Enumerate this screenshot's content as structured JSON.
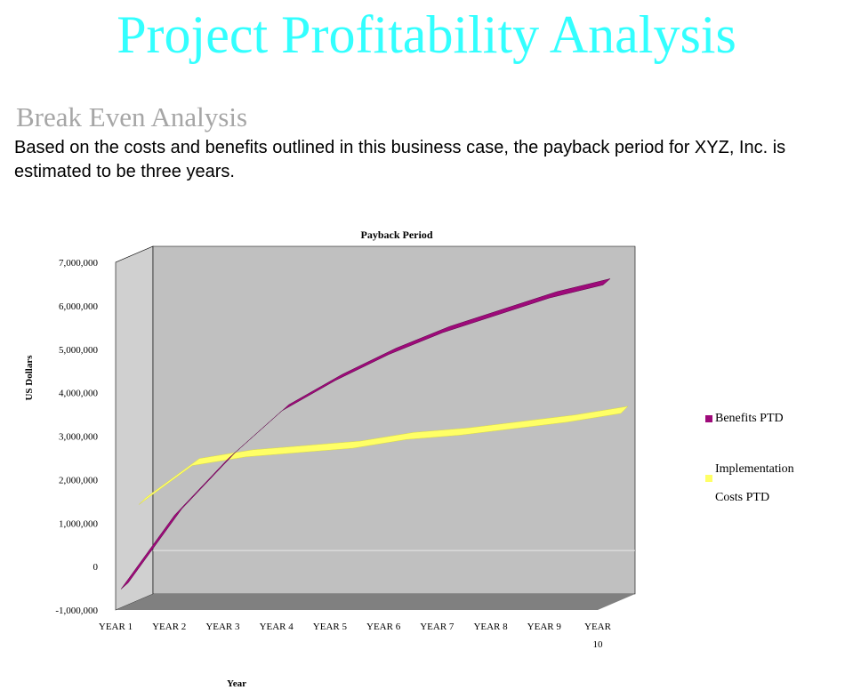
{
  "header": {
    "title": "Project Profitability Analysis",
    "subtitle": "Break Even Analysis",
    "body": "Based on the costs and benefits outlined in this business case, the payback period for XYZ, Inc. is estimated to be three years."
  },
  "colors": {
    "title": "#33ffff",
    "subtitle": "#a6a6a6",
    "back_wall": "#c0c0c0",
    "side_wall": "#d0d0d0",
    "floor": "#808080",
    "benefits": "#9e0a7a",
    "benefits_dark": "#5b0046",
    "costs": "#ffff66",
    "costs_dark": "#d8d84a"
  },
  "chart_data": {
    "type": "line",
    "title": "Payback Period",
    "xlabel": "Year",
    "ylabel": "US Dollars",
    "categories": [
      "YEAR 1",
      "YEAR 2",
      "YEAR 3",
      "YEAR 4",
      "YEAR 5",
      "YEAR 6",
      "YEAR 7",
      "YEAR 8",
      "YEAR 9",
      "YEAR 10"
    ],
    "category_labels": [
      [
        "YEAR 1"
      ],
      [
        "YEAR 2"
      ],
      [
        "YEAR 3"
      ],
      [
        "YEAR 4"
      ],
      [
        "YEAR 5"
      ],
      [
        "YEAR 6"
      ],
      [
        "YEAR 7"
      ],
      [
        "YEAR 8"
      ],
      [
        "YEAR 9"
      ],
      [
        "YEAR",
        "10"
      ]
    ],
    "ylim": [
      -1000000,
      7000000
    ],
    "yticks": [
      -1000000,
      0,
      1000000,
      2000000,
      3000000,
      4000000,
      5000000,
      6000000,
      7000000
    ],
    "ytick_labels": [
      "-1,000,000",
      "0",
      "1,000,000",
      "2,000,000",
      "3,000,000",
      "4,000,000",
      "5,000,000",
      "6,000,000",
      "7,000,000"
    ],
    "series": [
      {
        "name": "Benefits PTD",
        "values": [
          -500000,
          1200000,
          2500000,
          3600000,
          4300000,
          4900000,
          5400000,
          5800000,
          6200000,
          6500000
        ]
      },
      {
        "name": "Implementation Costs PTD",
        "values": [
          1300000,
          2200000,
          2400000,
          2500000,
          2600000,
          2800000,
          2900000,
          3050000,
          3200000,
          3400000
        ]
      }
    ],
    "legend": {
      "position": "right",
      "entries": [
        [
          "Benefits PTD"
        ],
        [
          "Implementation",
          "Costs PTD"
        ]
      ]
    },
    "grid": false,
    "three_d": true
  }
}
